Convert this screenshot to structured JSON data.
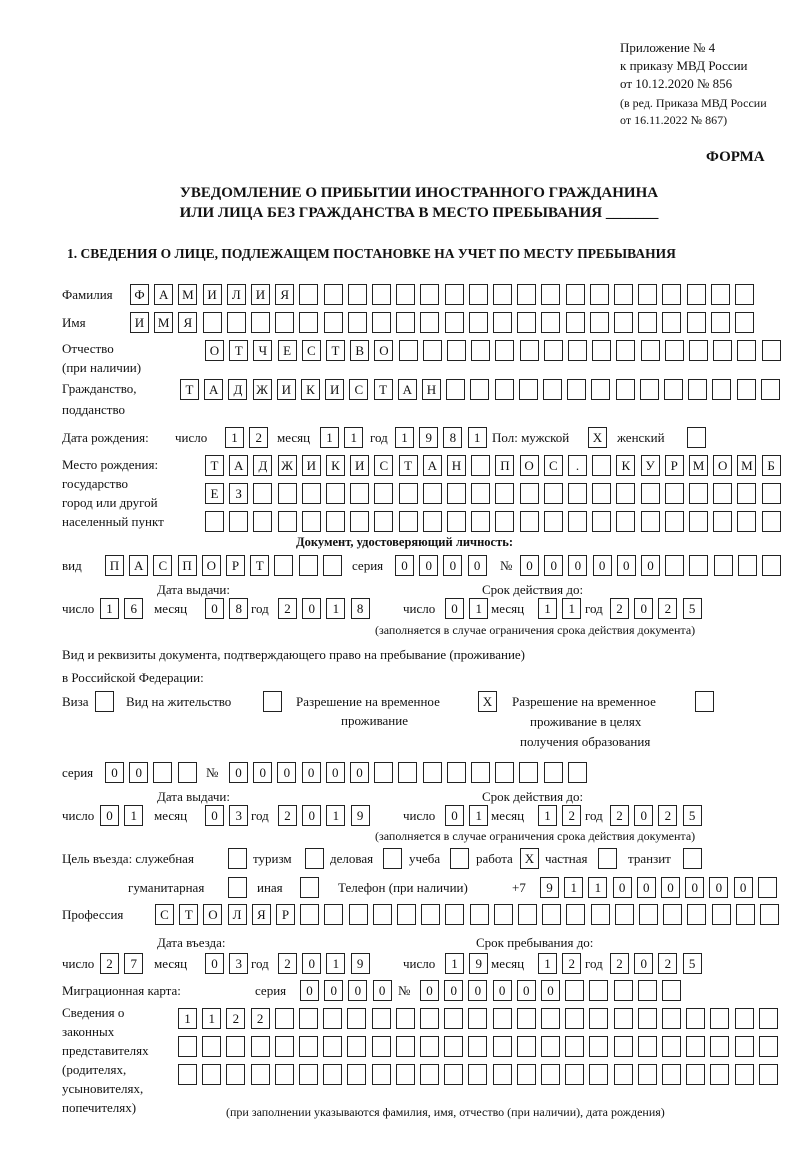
{
  "header": {
    "appendix": "Приложение № 4",
    "order": "к приказу МВД России",
    "order_date": "от 10.12.2020 № 856",
    "edition1": "(в ред. Приказа МВД России",
    "edition2": "от 16.11.2022 № 867)",
    "form_label": "ФОРМА",
    "title1": "УВЕДОМЛЕНИЕ О ПРИБЫТИИ ИНОСТРАННОГО ГРАЖДАНИНА",
    "title2": "ИЛИ ЛИЦА БЕЗ ГРАЖДАНСТВА В МЕСТО ПРЕБЫВАНИЯ _______",
    "section1": "1. СВЕДЕНИЯ О ЛИЦЕ, ПОДЛЕЖАЩЕМ ПОСТАНОВКЕ НА УЧЕТ ПО МЕСТУ ПРЕБЫВАНИЯ"
  },
  "labels": {
    "surname": "Фамилия",
    "name": "Имя",
    "patronymic": "Отчество",
    "patronymic_note": "(при наличии)",
    "citizenship1": "Гражданство,",
    "citizenship2": "подданство",
    "birth_date": "Дата рождения:",
    "day": "число",
    "month": "месяц",
    "year": "год",
    "sex": "Пол: мужской",
    "female": "женский",
    "birth_place1": "Место рождения:",
    "birth_place2": "государство",
    "birth_place3": "город или другой",
    "birth_place4": "населенный пункт",
    "id_doc": "Документ, удостоверяющий личность:",
    "kind": "вид",
    "series": "серия",
    "number": "№",
    "issue_date": "Дата выдачи:",
    "valid_until": "Срок действия до:",
    "validity_note": "(заполняется в случае ограничения срока действия документа)",
    "stay_doc1": "Вид и реквизиты документа, подтверждающего право на пребывание (проживание)",
    "stay_doc2": "в Российской Федерации:",
    "visa": "Виза",
    "residence": "Вид на жительство",
    "temp_res1": "Разрешение на временное",
    "temp_res2": "проживание",
    "temp_edu1": "Разрешение на временное",
    "temp_edu2": "проживание в целях",
    "temp_edu3": "получения образования",
    "purpose": "Цель въезда: служебная",
    "tourism": "туризм",
    "business": "деловая",
    "study": "учеба",
    "work": "работа",
    "private": "частная",
    "transit": "транзит",
    "humanitarian": "гуманитарная",
    "other": "иная",
    "phone": "Телефон (при наличии)",
    "phone_prefix": "+7",
    "profession": "Профессия",
    "entry_date": "Дата въезда:",
    "stay_until": "Срок пребывания до:",
    "migration_card": "Миграционная карта:",
    "reps1": "Сведения о",
    "reps2": "законных",
    "reps3": "представителях",
    "reps4": "(родителях,",
    "reps5": "усыновителях,",
    "reps6": "попечителях)",
    "reps_note": "(при заполнении указываются фамилия, имя, отчество (при наличии), дата рождения)"
  },
  "fields": {
    "surname": [
      "Ф",
      "А",
      "М",
      "И",
      "Л",
      "И",
      "Я"
    ],
    "name": [
      "И",
      "М",
      "Я"
    ],
    "patronymic": [
      "О",
      "Т",
      "Ч",
      "Е",
      "С",
      "Т",
      "В",
      "О"
    ],
    "citizenship": [
      "Т",
      "А",
      "Д",
      "Ж",
      "И",
      "К",
      "И",
      "С",
      "Т",
      "А",
      "Н"
    ],
    "birth_day": [
      "1",
      "2"
    ],
    "birth_month": [
      "1",
      "1"
    ],
    "birth_year": [
      "1",
      "9",
      "8",
      "1"
    ],
    "sex_male": [
      "X"
    ],
    "sex_female": [
      ""
    ],
    "birth_place_1": [
      "Т",
      "А",
      "Д",
      "Ж",
      "И",
      "К",
      "И",
      "С",
      "Т",
      "А",
      "Н",
      "",
      "П",
      "О",
      "С",
      ".",
      "",
      "К",
      "У",
      "Р",
      "М",
      "О",
      "М",
      "Б"
    ],
    "birth_place_2": [
      "Е",
      "З"
    ],
    "birth_place_3": [],
    "id_kind": [
      "П",
      "А",
      "С",
      "П",
      "О",
      "Р",
      "Т"
    ],
    "id_series": [
      "0",
      "0",
      "0",
      "0"
    ],
    "id_number": [
      "0",
      "0",
      "0",
      "0",
      "0",
      "0"
    ],
    "id_issue_day": [
      "1",
      "6"
    ],
    "id_issue_month": [
      "0",
      "8"
    ],
    "id_issue_year": [
      "2",
      "0",
      "1",
      "8"
    ],
    "id_valid_day": [
      "0",
      "1"
    ],
    "id_valid_month": [
      "1",
      "1"
    ],
    "id_valid_year": [
      "2",
      "0",
      "2",
      "5"
    ],
    "visa": [
      ""
    ],
    "residence": [
      ""
    ],
    "temp_res": [
      "X"
    ],
    "temp_edu": [
      ""
    ],
    "stay_series": [
      "0",
      "0"
    ],
    "stay_number": [
      "0",
      "0",
      "0",
      "0",
      "0",
      "0"
    ],
    "stay_issue_day": [
      "0",
      "1"
    ],
    "stay_issue_month": [
      "0",
      "3"
    ],
    "stay_issue_year": [
      "2",
      "0",
      "1",
      "9"
    ],
    "stay_valid_day": [
      "0",
      "1"
    ],
    "stay_valid_month": [
      "1",
      "2"
    ],
    "stay_valid_year": [
      "2",
      "0",
      "2",
      "5"
    ],
    "purpose_official": [
      ""
    ],
    "purpose_tourism": [
      ""
    ],
    "purpose_business": [
      ""
    ],
    "purpose_study": [
      ""
    ],
    "purpose_work": [
      "X"
    ],
    "purpose_private": [
      ""
    ],
    "purpose_transit": [
      ""
    ],
    "purpose_humanitarian": [
      ""
    ],
    "purpose_other": [
      ""
    ],
    "phone": [
      "9",
      "1",
      "1",
      "0",
      "0",
      "0",
      "0",
      "0",
      "0"
    ],
    "profession": [
      "С",
      "Т",
      "О",
      "Л",
      "Я",
      "Р"
    ],
    "entry_day": [
      "2",
      "7"
    ],
    "entry_month": [
      "0",
      "3"
    ],
    "entry_year": [
      "2",
      "0",
      "1",
      "9"
    ],
    "stay_until_day": [
      "1",
      "9"
    ],
    "stay_until_month": [
      "1",
      "2"
    ],
    "stay_until_year": [
      "2",
      "0",
      "2",
      "5"
    ],
    "mig_series": [
      "0",
      "0",
      "0",
      "0"
    ],
    "mig_number": [
      "0",
      "0",
      "0",
      "0",
      "0",
      "0"
    ],
    "reps_1": [
      "1",
      "1",
      "2",
      "2"
    ],
    "reps_2": [],
    "reps_3": []
  }
}
